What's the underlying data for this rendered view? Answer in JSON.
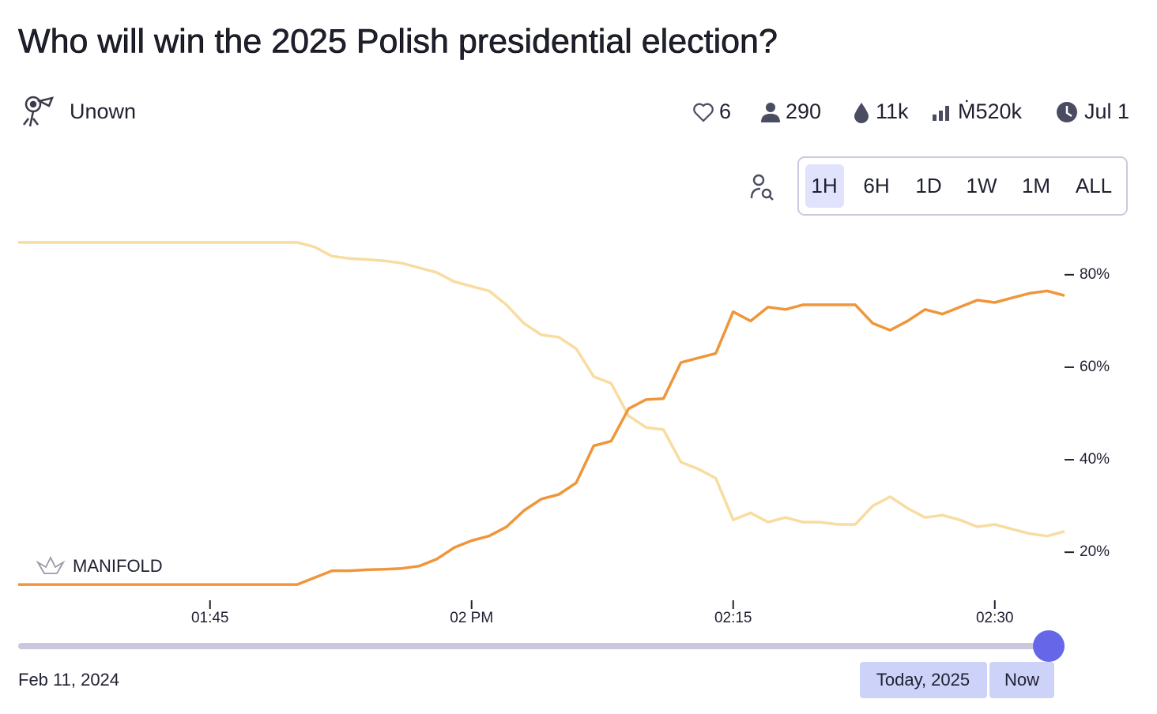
{
  "header": {
    "title": "Who will win the 2025 Polish presidential election?"
  },
  "author": {
    "name": "Unown"
  },
  "stats": {
    "likes": "6",
    "traders": "290",
    "liquidity": "11k",
    "volume": "Ṁ520k",
    "close_date": "Jul 1"
  },
  "time_buttons": [
    "1H",
    "6H",
    "1D",
    "1W",
    "1M",
    "ALL"
  ],
  "watermark": "MANIFOLD",
  "chart_data": {
    "type": "line",
    "x": [
      "01:34",
      "01:35",
      "01:36",
      "01:37",
      "01:38",
      "01:39",
      "01:40",
      "01:41",
      "01:42",
      "01:43",
      "01:44",
      "01:45",
      "01:46",
      "01:47",
      "01:48",
      "01:49",
      "01:50",
      "01:51",
      "01:52",
      "01:53",
      "01:54",
      "01:55",
      "01:56",
      "01:57",
      "01:58",
      "01:59",
      "02:00",
      "02:01",
      "02:02",
      "02:03",
      "02:04",
      "02:05",
      "02:06",
      "02:07",
      "02:08",
      "02:09",
      "02:10",
      "02:11",
      "02:12",
      "02:13",
      "02:14",
      "02:15",
      "02:16",
      "02:17",
      "02:18",
      "02:19",
      "02:20",
      "02:21",
      "02:22",
      "02:23",
      "02:24",
      "02:25",
      "02:26",
      "02:27",
      "02:28",
      "02:29",
      "02:30",
      "02:31",
      "02:32",
      "02:33",
      "02:34"
    ],
    "series": [
      {
        "color": "#f8dca0",
        "values": [
          87,
          87,
          87,
          87,
          87,
          87,
          87,
          87,
          87,
          87,
          87,
          87,
          87,
          87,
          87,
          87,
          87,
          86,
          84,
          83.5,
          83.3,
          83,
          82.5,
          81.5,
          80.5,
          78.5,
          77.5,
          76.5,
          73.5,
          69.5,
          67,
          66.5,
          64,
          58,
          56.5,
          49.5,
          47,
          46.5,
          39.5,
          38,
          36,
          27,
          28.5,
          26.5,
          27.5,
          26.5,
          26.5,
          26,
          26,
          30,
          32,
          29.5,
          27.5,
          28,
          27,
          25.5,
          26,
          25,
          24,
          23.5,
          24.5
        ]
      },
      {
        "color": "#f0953a",
        "values": [
          13,
          13,
          13,
          13,
          13,
          13,
          13,
          13,
          13,
          13,
          13,
          13,
          13,
          13,
          13,
          13,
          13,
          14.5,
          16,
          16,
          16.2,
          16.3,
          16.5,
          17,
          18.5,
          21,
          22.5,
          23.5,
          25.5,
          29,
          31.5,
          32.5,
          35,
          43,
          44,
          51,
          53,
          53.2,
          61,
          62,
          63,
          72,
          70,
          73,
          72.5,
          73.5,
          73.5,
          73.5,
          73.5,
          69.5,
          68,
          70,
          72.5,
          71.5,
          73,
          74.5,
          74,
          75,
          76,
          76.5,
          75.5
        ]
      }
    ],
    "xlim": [
      "01:34",
      "02:34"
    ],
    "xticks": [
      "01:45",
      {
        "value": "02:00",
        "label": "02 PM"
      },
      "02:15",
      "02:30"
    ],
    "ylim": [
      12,
      88
    ],
    "yticks": [
      {
        "value": 20,
        "label": "20%"
      },
      {
        "value": 40,
        "label": "40%"
      },
      {
        "value": 60,
        "label": "60%"
      },
      {
        "value": 80,
        "label": "80%"
      }
    ]
  },
  "footer": {
    "start_date": "Feb 11, 2024",
    "buttons": [
      "Today, 2025",
      "Now"
    ]
  }
}
